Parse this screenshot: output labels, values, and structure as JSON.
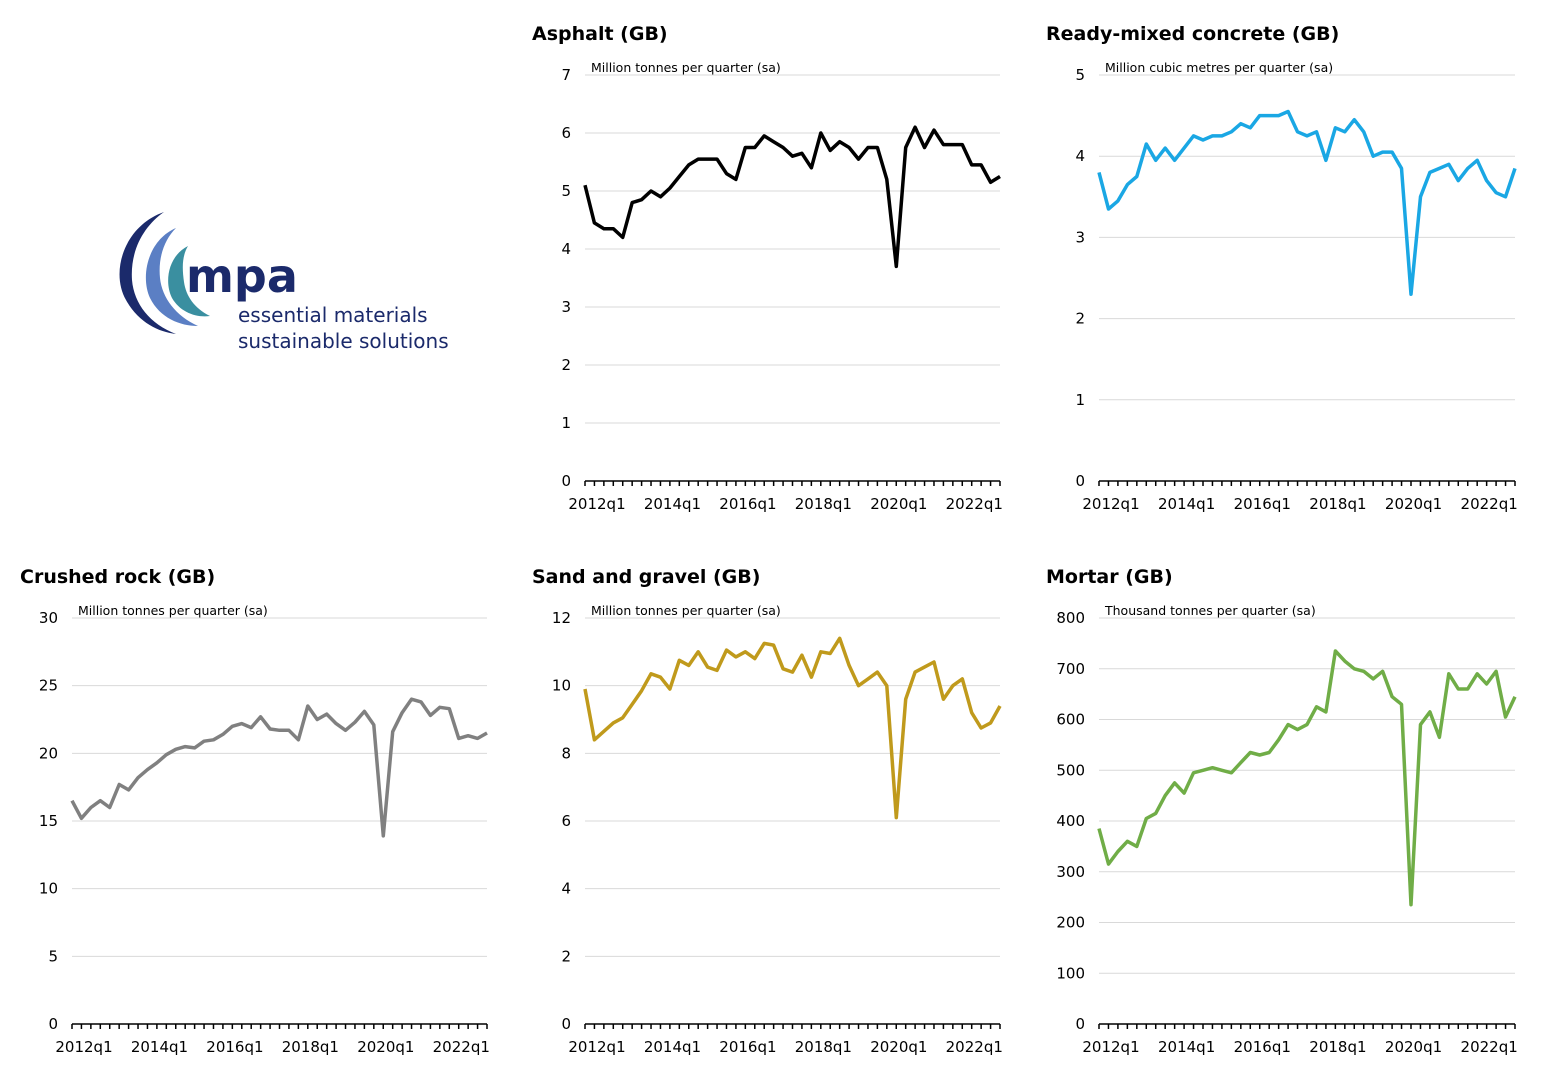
{
  "logo": {
    "brand": "mpa",
    "tagline_1": "essential materials",
    "tagline_2": "sustainable solutions",
    "colors": {
      "navy": "#1b2a6b",
      "teal": "#3a8fa0",
      "blue": "#5b7fc4"
    }
  },
  "chart_data": [
    {
      "id": "asphalt",
      "type": "line",
      "title": "Asphalt (GB)",
      "unit_label": "Million tonnes per quarter (sa)",
      "color": "#000000",
      "ylim": [
        0,
        7
      ],
      "yticks": [
        0,
        1,
        2,
        3,
        4,
        5,
        6,
        7
      ],
      "xlabels": [
        "2012q1",
        "2014q1",
        "2016q1",
        "2018q1",
        "2020q1",
        "2022q1"
      ],
      "start_quarter": "2012q1",
      "values": [
        5.1,
        4.45,
        4.35,
        4.35,
        4.2,
        4.8,
        4.85,
        5.0,
        4.9,
        5.05,
        5.25,
        5.45,
        5.55,
        5.55,
        5.55,
        5.3,
        5.2,
        5.75,
        5.75,
        5.95,
        5.85,
        5.75,
        5.6,
        5.65,
        5.4,
        6.0,
        5.7,
        5.85,
        5.75,
        5.55,
        5.75,
        5.75,
        5.2,
        3.7,
        5.75,
        6.1,
        5.75,
        6.05,
        5.8,
        5.8,
        5.8,
        5.45,
        5.45,
        5.15,
        5.25
      ]
    },
    {
      "id": "ready-mixed-concrete",
      "type": "line",
      "title": "Ready-mixed concrete (GB)",
      "unit_label": "Million cubic metres per quarter (sa)",
      "color": "#1aa7e4",
      "ylim": [
        0,
        5
      ],
      "yticks": [
        0,
        1,
        2,
        3,
        4,
        5
      ],
      "xlabels": [
        "2012q1",
        "2014q1",
        "2016q1",
        "2018q1",
        "2020q1",
        "2022q1"
      ],
      "start_quarter": "2012q1",
      "values": [
        3.8,
        3.35,
        3.45,
        3.65,
        3.75,
        4.15,
        3.95,
        4.1,
        3.95,
        4.1,
        4.25,
        4.2,
        4.25,
        4.25,
        4.3,
        4.4,
        4.35,
        4.5,
        4.5,
        4.5,
        4.55,
        4.3,
        4.25,
        4.3,
        3.95,
        4.35,
        4.3,
        4.45,
        4.3,
        4.0,
        4.05,
        4.05,
        3.85,
        2.3,
        3.5,
        3.8,
        3.85,
        3.9,
        3.7,
        3.85,
        3.95,
        3.7,
        3.55,
        3.5,
        3.85
      ]
    },
    {
      "id": "crushed-rock",
      "type": "line",
      "title": "Crushed rock (GB)",
      "unit_label": "Million tonnes per quarter (sa)",
      "color": "#808080",
      "ylim": [
        0,
        30
      ],
      "yticks": [
        0,
        5,
        10,
        15,
        20,
        25,
        30
      ],
      "xlabels": [
        "2012q1",
        "2014q1",
        "2016q1",
        "2018q1",
        "2020q1",
        "2022q1"
      ],
      "start_quarter": "2012q1",
      "values": [
        16.5,
        15.2,
        16.0,
        16.5,
        16.0,
        17.7,
        17.3,
        18.2,
        18.8,
        19.3,
        19.9,
        20.3,
        20.5,
        20.4,
        20.9,
        21.0,
        21.4,
        22.0,
        22.2,
        21.9,
        22.7,
        21.8,
        21.7,
        21.7,
        21.0,
        23.5,
        22.5,
        22.9,
        22.2,
        21.7,
        22.3,
        23.1,
        22.1,
        13.9,
        21.6,
        23.0,
        24.0,
        23.8,
        22.8,
        23.4,
        23.3,
        21.1,
        21.3,
        21.1,
        21.5
      ]
    },
    {
      "id": "sand-and-gravel",
      "type": "line",
      "title": "Sand and gravel (GB)",
      "unit_label": "Million tonnes per quarter (sa)",
      "color": "#c09a1c",
      "ylim": [
        0,
        12
      ],
      "yticks": [
        0,
        2,
        4,
        6,
        8,
        10,
        12
      ],
      "xlabels": [
        "2012q1",
        "2014q1",
        "2016q1",
        "2018q1",
        "2020q1",
        "2022q1"
      ],
      "start_quarter": "2012q1",
      "values": [
        9.9,
        8.4,
        8.65,
        8.9,
        9.05,
        9.45,
        9.85,
        10.35,
        10.25,
        9.9,
        10.75,
        10.6,
        11.0,
        10.55,
        10.45,
        11.05,
        10.85,
        11.0,
        10.8,
        11.25,
        11.2,
        10.5,
        10.4,
        10.9,
        10.25,
        11.0,
        10.95,
        11.4,
        10.6,
        10.0,
        10.2,
        10.4,
        10.0,
        6.1,
        9.6,
        10.4,
        10.55,
        10.7,
        9.6,
        10.0,
        10.2,
        9.2,
        8.75,
        8.9,
        9.4
      ]
    },
    {
      "id": "mortar",
      "type": "line",
      "title": "Mortar (GB)",
      "unit_label": "Thousand tonnes per quarter (sa)",
      "color": "#70ad47",
      "ylim": [
        0,
        800
      ],
      "yticks": [
        0,
        100,
        200,
        300,
        400,
        500,
        600,
        700,
        800
      ],
      "xlabels": [
        "2012q1",
        "2014q1",
        "2016q1",
        "2018q1",
        "2020q1",
        "2022q1"
      ],
      "start_quarter": "2012q1",
      "values": [
        385,
        315,
        340,
        360,
        350,
        405,
        415,
        450,
        475,
        455,
        495,
        500,
        505,
        500,
        495,
        515,
        535,
        530,
        535,
        560,
        590,
        580,
        590,
        625,
        615,
        735,
        715,
        700,
        695,
        680,
        695,
        645,
        630,
        235,
        590,
        615,
        565,
        690,
        660,
        660,
        690,
        670,
        695,
        605,
        645
      ]
    }
  ]
}
